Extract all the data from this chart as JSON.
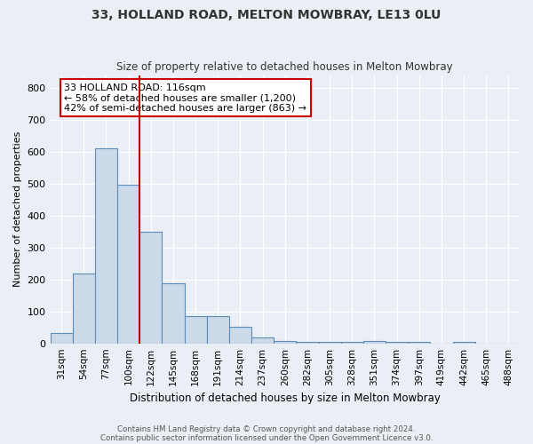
{
  "title1": "33, HOLLAND ROAD, MELTON MOWBRAY, LE13 0LU",
  "title2": "Size of property relative to detached houses in Melton Mowbray",
  "xlabel": "Distribution of detached houses by size in Melton Mowbray",
  "ylabel": "Number of detached properties",
  "bar_values": [
    32,
    218,
    610,
    497,
    350,
    188,
    85,
    85,
    52,
    18,
    8,
    5,
    5,
    5,
    8,
    5,
    5,
    0,
    5,
    0,
    0
  ],
  "bar_labels": [
    "31sqm",
    "54sqm",
    "77sqm",
    "100sqm",
    "122sqm",
    "145sqm",
    "168sqm",
    "191sqm",
    "214sqm",
    "237sqm",
    "260sqm",
    "282sqm",
    "305sqm",
    "328sqm",
    "351sqm",
    "374sqm",
    "397sqm",
    "419sqm",
    "442sqm",
    "465sqm",
    "488sqm"
  ],
  "bar_color": "#ccd9e8",
  "bar_edge_color": "#5b8db8",
  "vline_color": "#cc0000",
  "annotation_text": "33 HOLLAND ROAD: 116sqm\n← 58% of detached houses are smaller (1,200)\n42% of semi-detached houses are larger (863) →",
  "annotation_box_color": "white",
  "annotation_box_edge": "#cc0000",
  "ylim": [
    0,
    840
  ],
  "yticks": [
    0,
    100,
    200,
    300,
    400,
    500,
    600,
    700,
    800
  ],
  "footer1": "Contains HM Land Registry data © Crown copyright and database right 2024.",
  "footer2": "Contains public sector information licensed under the Open Government Licence v3.0.",
  "bg_color": "#eaeff6",
  "plot_bg_color": "#eaeff6",
  "grid_color": "#ffffff"
}
